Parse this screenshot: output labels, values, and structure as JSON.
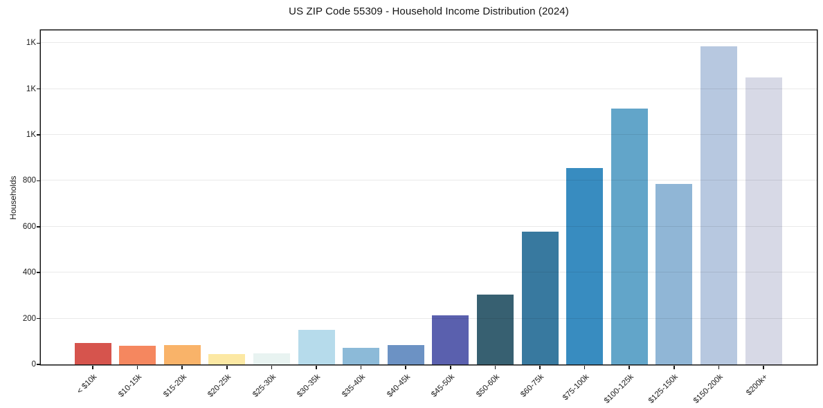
{
  "chart_data": {
    "type": "bar",
    "title": "US ZIP Code 55309 - Household Income Distribution (2024)",
    "xlabel": "",
    "ylabel": "Households",
    "categories": [
      "< $10k",
      "$10-15k",
      "$15-20k",
      "$20-25k",
      "$25-30k",
      "$30-35k",
      "$35-40k",
      "$40-45k",
      "$45-50k",
      "$50-60k",
      "$60-75k",
      "$75-100k",
      "$100-125k",
      "$125-150k",
      "$150-200k",
      "$200k+"
    ],
    "values": [
      92,
      82,
      85,
      46,
      48,
      150,
      72,
      85,
      215,
      303,
      578,
      855,
      1115,
      785,
      1385,
      1250
    ],
    "bar_colors": [
      "#d6544d",
      "#f5875f",
      "#f9b369",
      "#fce8a3",
      "#e8f3f1",
      "#b6dbeb",
      "#8cbad8",
      "#6c92c4",
      "#5a60ae",
      "#376071",
      "#38799f",
      "#388cc0",
      "#62a5c9",
      "#90b6d6",
      "#b7c8e0",
      "#d7d9e6"
    ],
    "ytick_values": [
      0,
      200,
      400,
      600,
      800,
      1000,
      1200,
      1400
    ],
    "ytick_labels": [
      "0",
      "200",
      "400",
      "600",
      "800",
      "1K",
      "1K",
      "1K"
    ],
    "ylim": [
      0,
      1455
    ],
    "grid": "horizontal-only",
    "legend": "none",
    "colors": {
      "spine": "#141414",
      "grid": "#eaeaea",
      "text": "#1a1a1a",
      "background": "#ffffff"
    }
  }
}
